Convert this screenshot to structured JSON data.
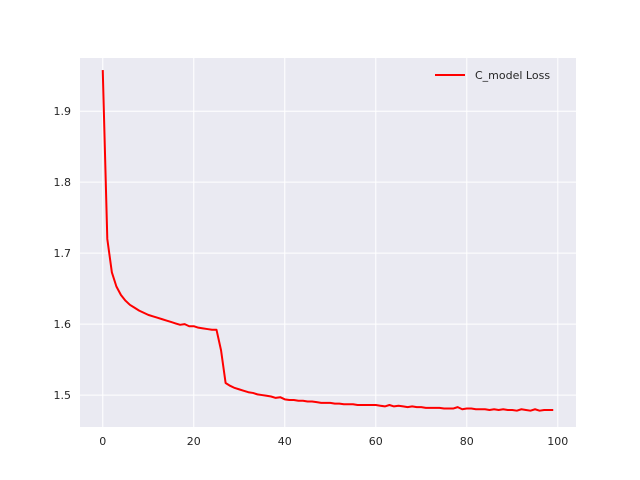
{
  "chart_data": {
    "type": "line",
    "title": "",
    "xlabel": "",
    "ylabel": "",
    "xlim": [
      -5,
      104
    ],
    "ylim": [
      1.455,
      1.975
    ],
    "xticks": [
      0,
      20,
      40,
      60,
      80,
      100
    ],
    "yticks": [
      1.5,
      1.6,
      1.7,
      1.8,
      1.9
    ],
    "grid": true,
    "legend_position": "top-right",
    "colors": {
      "plot_background": "#eaeaf2",
      "grid": "#ffffff",
      "series": "#ff0000"
    },
    "x": [
      0,
      1,
      2,
      3,
      4,
      5,
      6,
      7,
      8,
      9,
      10,
      11,
      12,
      13,
      14,
      15,
      16,
      17,
      18,
      19,
      20,
      21,
      22,
      23,
      24,
      25,
      26,
      27,
      28,
      29,
      30,
      31,
      32,
      33,
      34,
      35,
      36,
      37,
      38,
      39,
      40,
      41,
      42,
      43,
      44,
      45,
      46,
      47,
      48,
      49,
      50,
      51,
      52,
      53,
      54,
      55,
      56,
      57,
      58,
      59,
      60,
      61,
      62,
      63,
      64,
      65,
      66,
      67,
      68,
      69,
      70,
      71,
      72,
      73,
      74,
      75,
      76,
      77,
      78,
      79,
      80,
      81,
      82,
      83,
      84,
      85,
      86,
      87,
      88,
      89,
      90,
      91,
      92,
      93,
      94,
      95,
      96,
      97,
      98,
      99
    ],
    "series": [
      {
        "name": "C_model Loss",
        "values": [
          1.958,
          1.72,
          1.673,
          1.653,
          1.641,
          1.633,
          1.627,
          1.623,
          1.619,
          1.616,
          1.613,
          1.611,
          1.609,
          1.607,
          1.605,
          1.603,
          1.601,
          1.599,
          1.6,
          1.597,
          1.597,
          1.595,
          1.594,
          1.593,
          1.592,
          1.592,
          1.563,
          1.517,
          1.513,
          1.51,
          1.508,
          1.506,
          1.504,
          1.503,
          1.501,
          1.5,
          1.499,
          1.498,
          1.496,
          1.497,
          1.494,
          1.493,
          1.493,
          1.492,
          1.492,
          1.491,
          1.491,
          1.49,
          1.489,
          1.489,
          1.489,
          1.488,
          1.488,
          1.487,
          1.487,
          1.487,
          1.486,
          1.486,
          1.486,
          1.486,
          1.486,
          1.485,
          1.484,
          1.486,
          1.484,
          1.485,
          1.484,
          1.483,
          1.484,
          1.483,
          1.483,
          1.482,
          1.482,
          1.482,
          1.482,
          1.481,
          1.481,
          1.481,
          1.483,
          1.48,
          1.481,
          1.481,
          1.48,
          1.48,
          1.48,
          1.479,
          1.48,
          1.479,
          1.48,
          1.479,
          1.479,
          1.478,
          1.48,
          1.479,
          1.478,
          1.48,
          1.478,
          1.479,
          1.479,
          1.479
        ]
      }
    ]
  }
}
